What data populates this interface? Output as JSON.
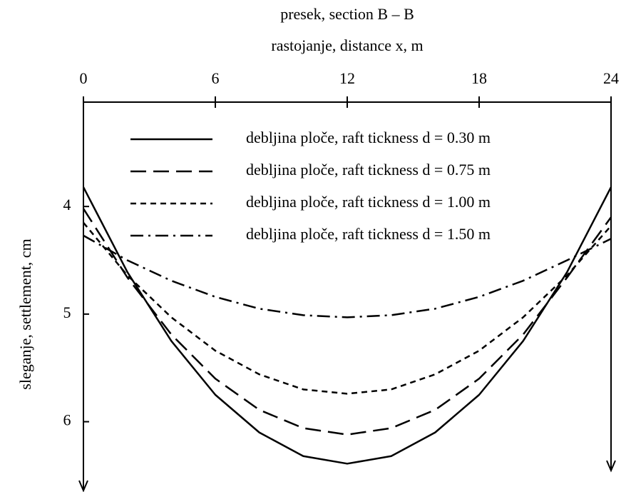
{
  "chart_data": {
    "type": "line",
    "title": "presek, section B – B",
    "xlabel": "rastojanje, distance x, m",
    "ylabel": "sleganje, settlement, cm",
    "x": [
      0,
      2,
      4,
      6,
      8,
      10,
      12,
      14,
      16,
      18,
      20,
      22,
      24
    ],
    "series": [
      {
        "name": "debljina ploče, raft tickness d = 0.30 m",
        "color": "#000000",
        "style": "solid",
        "values": [
          3.82,
          4.61,
          5.25,
          5.75,
          6.1,
          6.32,
          6.39,
          6.32,
          6.1,
          5.75,
          5.25,
          4.61,
          3.82
        ]
      },
      {
        "name": "debljina ploče, raft tickness d = 0.75 m",
        "color": "#000000",
        "style": "dashed",
        "values": [
          4.02,
          4.66,
          5.19,
          5.6,
          5.89,
          6.06,
          6.12,
          6.06,
          5.89,
          5.6,
          5.19,
          4.66,
          4.1
        ]
      },
      {
        "name": "debljina ploče, raft tickness d = 1.00 m",
        "color": "#000000",
        "style": "dotted",
        "values": [
          4.15,
          4.64,
          5.03,
          5.34,
          5.56,
          5.7,
          5.74,
          5.7,
          5.56,
          5.34,
          5.03,
          4.64,
          4.18
        ]
      },
      {
        "name": "debljina ploče, raft tickness d = 1.50 m",
        "color": "#000000",
        "style": "dashdot",
        "values": [
          4.27,
          4.5,
          4.69,
          4.84,
          4.95,
          5.01,
          5.03,
          5.01,
          4.95,
          4.84,
          4.69,
          4.5,
          4.3
        ]
      }
    ],
    "xlim": [
      0,
      24
    ],
    "xticks": [
      0,
      6,
      12,
      18,
      24
    ],
    "ylim": [
      3.03,
      6.64
    ],
    "yticks": [
      4,
      5,
      6
    ],
    "yinverted": true,
    "xaxis_position": "top",
    "legend": "top"
  }
}
